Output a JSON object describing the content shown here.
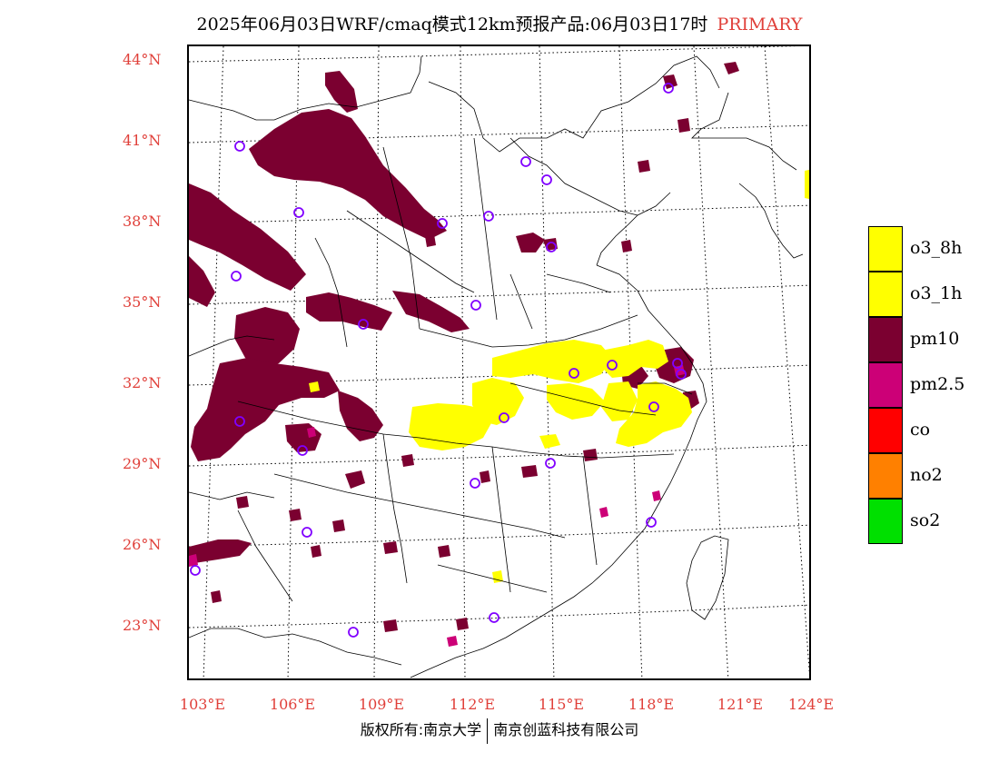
{
  "title": "2025年06月03日WRF/cmaq模式12km预报产品:06月03日17时",
  "title_tag": "PRIMARY",
  "lat_labels": [
    "44°N",
    "41°N",
    "38°N",
    "35°N",
    "32°N",
    "29°N",
    "26°N",
    "23°N"
  ],
  "lon_labels": [
    "103°E",
    "106°E",
    "109°E",
    "112°E",
    "115°E",
    "118°E",
    "121°E",
    "124°E"
  ],
  "legend": [
    {
      "label": "o3_8h",
      "color": "#ffff00"
    },
    {
      "label": "o3_1h",
      "color": "#ffff00"
    },
    {
      "label": "pm10",
      "color": "#7b0030"
    },
    {
      "label": "pm2.5",
      "color": "#cc0077"
    },
    {
      "label": "co",
      "color": "#ff0000"
    },
    {
      "label": "no2",
      "color": "#ff8000"
    },
    {
      "label": "so2",
      "color": "#00e000"
    }
  ],
  "copyright_left": "版权所有:南京大学",
  "copyright_right": "南京创蓝科技有限公司",
  "colors": {
    "accent_red": "#e0403a",
    "pm10": "#7b0030",
    "o3": "#ffff00",
    "pm25": "#cc0077",
    "station": "#8000ff"
  }
}
